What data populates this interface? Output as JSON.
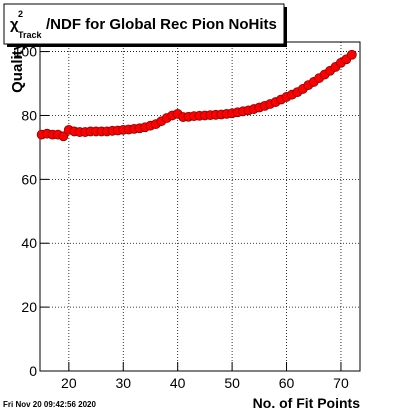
{
  "chart_data": {
    "type": "scatter",
    "title": {
      "symbol": "χ",
      "superscript": "2",
      "subscript": "Track",
      "text": "/NDF for Global Rec Pion NoHits"
    },
    "y_label": "Quality",
    "x_label": "No. of Fit Points",
    "timestamp": "Fri Nov 20 09:42:56 2020",
    "color": "#ff0000",
    "grid": true,
    "x": [
      15,
      16,
      17,
      18,
      19,
      20,
      21,
      22,
      23,
      24,
      25,
      26,
      27,
      28,
      29,
      30,
      31,
      32,
      33,
      34,
      35,
      36,
      37,
      38,
      39,
      40,
      41,
      42,
      43,
      44,
      45,
      46,
      47,
      48,
      49,
      50,
      51,
      52,
      53,
      54,
      55,
      56,
      57,
      58,
      59,
      60,
      61,
      62,
      63,
      64,
      65,
      66,
      67,
      68,
      69,
      70,
      71,
      72
    ],
    "values": [
      74,
      74.3,
      74,
      74,
      73.5,
      75.5,
      75,
      74.8,
      74.8,
      75,
      75,
      75,
      75,
      75.2,
      75.3,
      75.5,
      75.6,
      75.8,
      76,
      76.3,
      76.8,
      77.3,
      78.2,
      79.2,
      80,
      80.5,
      79.5,
      79.6,
      79.8,
      79.9,
      80,
      80.1,
      80.2,
      80.3,
      80.5,
      80.7,
      81,
      81.3,
      81.6,
      82,
      82.5,
      83,
      83.6,
      84.2,
      85,
      85.8,
      86.5,
      87.3,
      88.3,
      89.5,
      90.5,
      91.7,
      92.8,
      94,
      95.2,
      96.5,
      97.6,
      99
    ],
    "xlim": [
      14.7,
      73.5
    ],
    "ylim": [
      0,
      103
    ],
    "xticks": [
      20,
      30,
      40,
      50,
      60,
      70
    ],
    "yticks": [
      0,
      20,
      40,
      60,
      80,
      100
    ]
  }
}
